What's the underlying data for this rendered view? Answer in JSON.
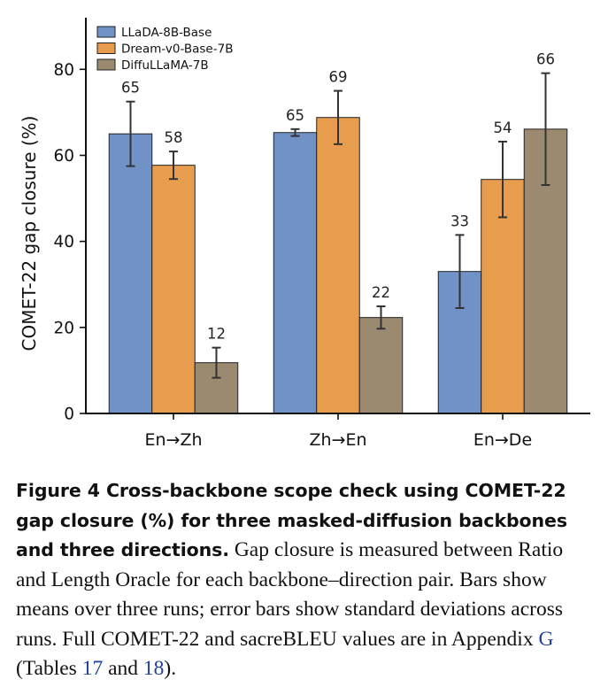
{
  "chart_data": {
    "type": "bar",
    "categories": [
      "En→Zh",
      "Zh→En",
      "En→De"
    ],
    "series": [
      {
        "name": "LLaDA-8B-Base",
        "color": "#7092c7",
        "values": [
          65,
          65.3,
          33
        ],
        "errors": [
          7.5,
          0.8,
          8.5
        ],
        "labels": [
          "65",
          "65",
          "33"
        ]
      },
      {
        "name": "Dream-v0-Base-7B",
        "color": "#e89c4e",
        "values": [
          57.7,
          68.8,
          54.4
        ],
        "errors": [
          3.2,
          6.2,
          8.8
        ],
        "labels": [
          "58",
          "69",
          "54"
        ]
      },
      {
        "name": "DiffuLLaMA-7B",
        "color": "#9b8a70",
        "values": [
          11.8,
          22.3,
          66.1
        ],
        "errors": [
          3.5,
          2.6,
          13.0
        ],
        "labels": [
          "12",
          "22",
          "66"
        ]
      }
    ],
    "xlabel": "",
    "ylabel": "COMET-22 gap closure (%)",
    "ylim": [
      0,
      92
    ],
    "yticks": [
      0,
      20,
      40,
      60,
      80
    ],
    "grid": false,
    "legend_position": "top-left"
  },
  "caption": {
    "label": "Figure 4",
    "bold_text": "Cross-backbone scope check using COMET-22 gap closure (%) for three masked-diffusion backbones and three directions.",
    "text_before_appendix": "Gap closure is measured between Ratio and Length Oracle for each backbone–direction pair. Bars show means over three runs; error bars show standard deviations across runs. Full COMET-22 and sacreBLEU values are in Appendix",
    "appendix_ref": "G",
    "text_tables_open": "(Tables",
    "table_ref_1": "17",
    "text_and": "and",
    "table_ref_2": "18",
    "text_end": ")."
  }
}
